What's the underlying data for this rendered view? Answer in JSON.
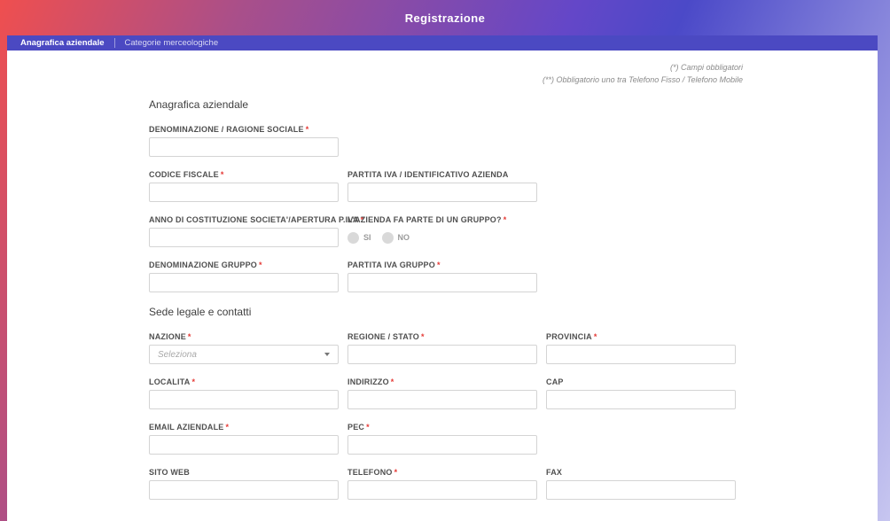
{
  "header": {
    "title": "Registrazione"
  },
  "tabs": [
    {
      "label": "Anagrafica aziendale",
      "active": true
    },
    {
      "label": "Categorie merceologiche",
      "active": false
    }
  ],
  "notes": [
    "(*) Campi obbligatori",
    "(**) Obbligatorio uno tra Telefono Fisso / Telefono Mobile"
  ],
  "form": {
    "sections": [
      {
        "title": "Anagrafica aziendale",
        "rows": [
          [
            {
              "label": "DENOMINAZIONE / RAGIONE SOCIALE",
              "required": true,
              "type": "text",
              "value": ""
            }
          ],
          [
            {
              "label": "CODICE FISCALE",
              "required": true,
              "type": "text",
              "value": ""
            },
            {
              "label": "PARTITA IVA / IDENTIFICATIVO AZIENDA",
              "required": false,
              "type": "text",
              "value": ""
            }
          ],
          [
            {
              "label": "ANNO DI COSTITUZIONE SOCIETA'/APERTURA P.IVA",
              "required": true,
              "type": "text",
              "value": ""
            },
            {
              "label": "L'AZIENDA FA PARTE DI UN GRUPPO?",
              "required": true,
              "type": "radio",
              "options": [
                "SI",
                "NO"
              ],
              "selected": ""
            }
          ],
          [
            {
              "label": "DENOMINAZIONE GRUPPO",
              "required": true,
              "type": "text",
              "value": ""
            },
            {
              "label": "PARTITA IVA GRUPPO",
              "required": true,
              "type": "text",
              "value": ""
            }
          ]
        ]
      },
      {
        "title": "Sede legale e contatti",
        "rows": [
          [
            {
              "label": "NAZIONE",
              "required": true,
              "type": "select",
              "placeholder": "Seleziona",
              "value": ""
            },
            {
              "label": "REGIONE / STATO",
              "required": true,
              "type": "text",
              "value": ""
            },
            {
              "label": "PROVINCIA",
              "required": true,
              "type": "text",
              "value": ""
            }
          ],
          [
            {
              "label": "LOCALITA",
              "required": true,
              "type": "text",
              "value": ""
            },
            {
              "label": "INDIRIZZO",
              "required": true,
              "type": "text",
              "value": ""
            },
            {
              "label": "CAP",
              "required": false,
              "type": "text",
              "value": ""
            }
          ],
          [
            {
              "label": "EMAIL AZIENDALE",
              "required": true,
              "type": "text",
              "value": ""
            },
            {
              "label": "PEC",
              "required": true,
              "type": "text",
              "value": ""
            }
          ],
          [
            {
              "label": "SITO WEB",
              "required": false,
              "type": "text",
              "value": ""
            },
            {
              "label": "TELEFONO",
              "required": true,
              "type": "text",
              "value": ""
            },
            {
              "label": "FAX",
              "required": false,
              "type": "text",
              "value": ""
            }
          ]
        ]
      }
    ]
  },
  "colors": {
    "gradient": [
      "#ef4f4f",
      "#a94f8a",
      "#6447c8",
      "#4b49c8",
      "#c7c6f0"
    ],
    "tabbar_bg": "#4b49c2",
    "required_marker": "#e53935"
  }
}
